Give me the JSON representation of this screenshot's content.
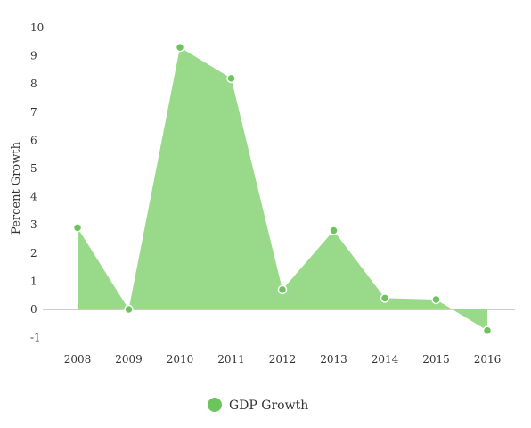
{
  "chart_data": {
    "type": "area",
    "title": "",
    "xlabel": "",
    "ylabel": "Percent Growth",
    "categories": [
      "2008",
      "2009",
      "2010",
      "2011",
      "2012",
      "2013",
      "2014",
      "2015",
      "2016"
    ],
    "series": [
      {
        "name": "GDP Growth",
        "values": [
          2.9,
          0.0,
          9.3,
          8.2,
          0.7,
          2.8,
          0.4,
          0.35,
          -0.75
        ]
      }
    ],
    "ylim": [
      -1,
      10
    ],
    "yticks": [
      "-1",
      "0",
      "1",
      "2",
      "3",
      "4",
      "5",
      "6",
      "7",
      "8",
      "9",
      "10"
    ],
    "grid": false,
    "legend_position": "bottom-center",
    "colors": {
      "fill": "#98d98a",
      "point": "#6cc45c",
      "point_stroke": "#ffffff",
      "zero_line": "#999999"
    }
  }
}
